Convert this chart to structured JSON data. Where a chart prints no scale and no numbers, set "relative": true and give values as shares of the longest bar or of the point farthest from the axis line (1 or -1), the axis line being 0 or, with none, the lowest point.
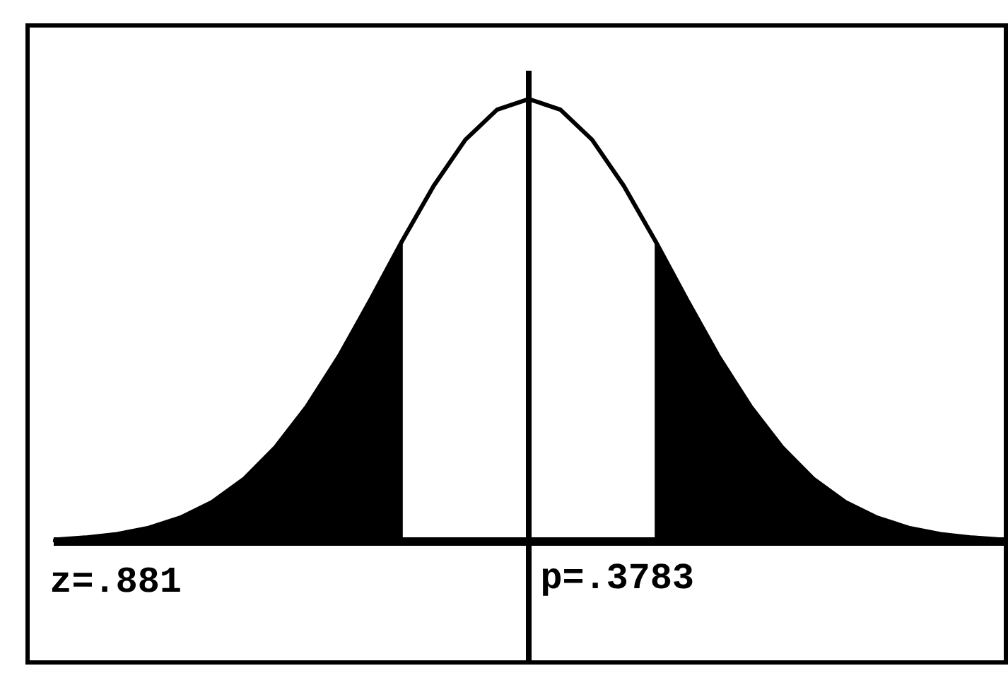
{
  "chart_data": {
    "type": "line",
    "relative": true,
    "categories": [
      null,
      null,
      null,
      null,
      null,
      null,
      null,
      null,
      null,
      null,
      null,
      null,
      null,
      null,
      null,
      null,
      null,
      null,
      null,
      null,
      null,
      null,
      null,
      null,
      null,
      null,
      null,
      null,
      null,
      null,
      null
    ],
    "series": [
      {
        "color": "#000000",
        "values": [
          0.004,
          0.009,
          0.017,
          0.031,
          0.054,
          0.089,
          0.141,
          0.213,
          0.306,
          0.418,
          0.546,
          0.679,
          0.804,
          0.908,
          0.976,
          1,
          0.976,
          0.908,
          0.804,
          0.679,
          0.546,
          0.418,
          0.306,
          0.213,
          0.141,
          0.089,
          0.054,
          0.031,
          0.017,
          0.009,
          0.004
        ]
      },
      {
        "type": "area",
        "color": "#000000",
        "values": [
          0.004,
          0.009,
          0.017,
          0.031,
          0.054,
          0.089,
          0.141,
          0.213,
          0.306,
          0.418,
          0.546,
          0.679,
          null,
          null,
          null,
          null,
          null,
          null,
          null,
          null,
          null,
          null,
          null,
          null,
          null,
          null,
          null,
          null,
          null,
          null,
          null
        ]
      },
      {
        "type": "area",
        "color": "#000000",
        "values": [
          null,
          null,
          null,
          null,
          null,
          null,
          null,
          null,
          null,
          null,
          null,
          null,
          null,
          null,
          null,
          null,
          null,
          null,
          null,
          0.679,
          0.546,
          0.418,
          0.306,
          0.213,
          0.141,
          0.089,
          0.054,
          0.031,
          0.017,
          0.009,
          0.004
        ]
      }
    ],
    "annotations": [
      "z=.881",
      "p=.3783"
    ]
  }
}
